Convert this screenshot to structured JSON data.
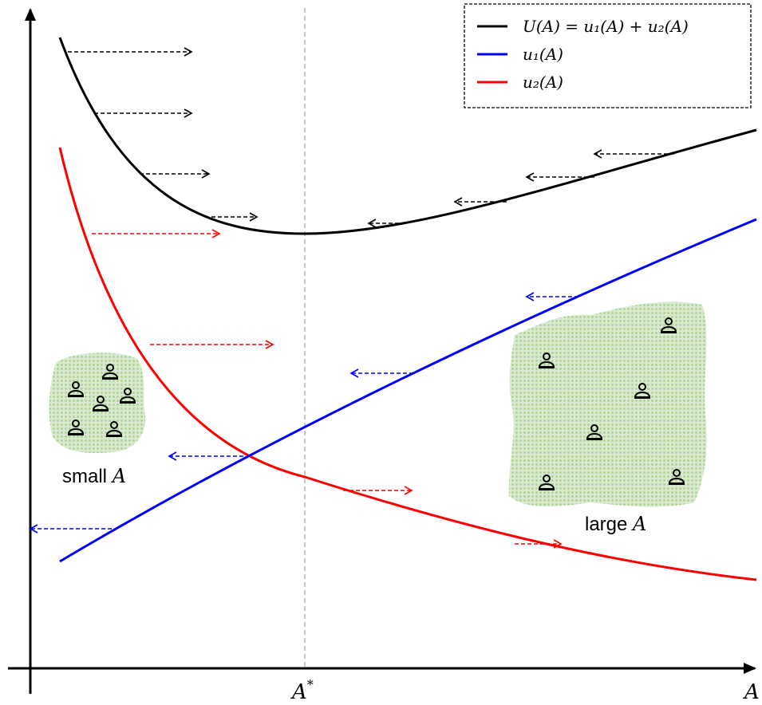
{
  "legend": [
    {
      "label": "U(A) = u₁(A) + u₂(A)"
    },
    {
      "label": "u₁(A)"
    },
    {
      "label": "u₂(A)"
    }
  ],
  "groups": {
    "small_word": "small",
    "small_var": "A",
    "large_word": "large",
    "large_var": "A"
  },
  "axis": {
    "x_label": "A",
    "marker": "A",
    "marker_sup": "*"
  }
}
